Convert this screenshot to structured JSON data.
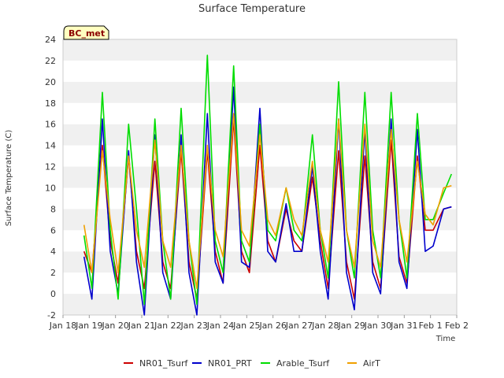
{
  "chart_data": {
    "type": "line",
    "title": "Surface Temperature",
    "xlabel": "Time",
    "ylabel": "Surface Temperature (C)",
    "badge": "BC_met",
    "ylim": [
      -2,
      24
    ],
    "yticks": [
      -2,
      0,
      2,
      4,
      6,
      8,
      10,
      12,
      14,
      16,
      18,
      20,
      22,
      24
    ],
    "xlim": [
      0,
      15
    ],
    "xticks": [
      0,
      1,
      2,
      3,
      4,
      5,
      6,
      7,
      8,
      9,
      10,
      11,
      12,
      13,
      14,
      15
    ],
    "xtick_labels": [
      "Jan 18",
      "Jan 19",
      "Jan 20",
      "Jan 21",
      "Jan 22",
      "Jan 23",
      "Jan 24",
      "Jan 25",
      "Jan 26",
      "Jan 27",
      "Jan 28",
      "Jan 29",
      "Jan 30",
      "Jan 31",
      "Feb 1",
      "Feb 2"
    ],
    "grid": "horizontal bands",
    "legend_position": "bottom",
    "series": [
      {
        "name": "NR01_Tsurf",
        "color": "#cc0000",
        "points": [
          [
            0.8,
            4.0
          ],
          [
            1.1,
            2.0
          ],
          [
            1.5,
            14.0
          ],
          [
            1.8,
            5.0
          ],
          [
            2.1,
            1.0
          ],
          [
            2.5,
            13.0
          ],
          [
            2.8,
            4.0
          ],
          [
            3.1,
            0.5
          ],
          [
            3.5,
            12.5
          ],
          [
            3.8,
            3.0
          ],
          [
            4.1,
            0.5
          ],
          [
            4.5,
            13.5
          ],
          [
            4.8,
            3.0
          ],
          [
            5.1,
            -0.5
          ],
          [
            5.5,
            13.5
          ],
          [
            5.8,
            4.0
          ],
          [
            6.1,
            1.0
          ],
          [
            6.5,
            16.5
          ],
          [
            6.8,
            4.0
          ],
          [
            7.1,
            2.0
          ],
          [
            7.5,
            14.0
          ],
          [
            7.8,
            5.0
          ],
          [
            8.1,
            3.0
          ],
          [
            8.5,
            8.0
          ],
          [
            8.8,
            5.0
          ],
          [
            9.1,
            4.0
          ],
          [
            9.5,
            11.0
          ],
          [
            9.8,
            5.0
          ],
          [
            10.1,
            0.5
          ],
          [
            10.5,
            13.5
          ],
          [
            10.8,
            3.0
          ],
          [
            11.1,
            -0.5
          ],
          [
            11.5,
            13.0
          ],
          [
            11.8,
            3.0
          ],
          [
            12.1,
            0.5
          ],
          [
            12.5,
            14.5
          ],
          [
            12.8,
            3.5
          ],
          [
            13.1,
            1.0
          ],
          [
            13.5,
            13.0
          ],
          [
            13.8,
            6.0
          ],
          [
            14.1,
            6.0
          ],
          [
            14.5,
            8.0
          ],
          [
            14.8,
            8.2
          ]
        ]
      },
      {
        "name": "NR01_PRT",
        "color": "#0000cc",
        "points": [
          [
            0.8,
            3.5
          ],
          [
            1.1,
            -0.5
          ],
          [
            1.5,
            16.5
          ],
          [
            1.8,
            4.0
          ],
          [
            2.1,
            0.0
          ],
          [
            2.5,
            13.5
          ],
          [
            2.8,
            3.0
          ],
          [
            3.1,
            -2.0
          ],
          [
            3.5,
            15.0
          ],
          [
            3.8,
            2.0
          ],
          [
            4.1,
            -0.5
          ],
          [
            4.5,
            15.0
          ],
          [
            4.8,
            2.0
          ],
          [
            5.1,
            -2.0
          ],
          [
            5.5,
            17.0
          ],
          [
            5.8,
            3.0
          ],
          [
            6.1,
            1.0
          ],
          [
            6.5,
            19.5
          ],
          [
            6.8,
            3.0
          ],
          [
            7.1,
            2.5
          ],
          [
            7.5,
            17.5
          ],
          [
            7.8,
            4.0
          ],
          [
            8.1,
            3.0
          ],
          [
            8.5,
            8.5
          ],
          [
            8.8,
            4.0
          ],
          [
            9.1,
            4.0
          ],
          [
            9.5,
            12.0
          ],
          [
            9.8,
            4.0
          ],
          [
            10.1,
            -0.5
          ],
          [
            10.5,
            16.5
          ],
          [
            10.8,
            2.0
          ],
          [
            11.1,
            -1.5
          ],
          [
            11.5,
            15.5
          ],
          [
            11.8,
            2.0
          ],
          [
            12.1,
            0.0
          ],
          [
            12.5,
            16.5
          ],
          [
            12.8,
            3.0
          ],
          [
            13.1,
            0.5
          ],
          [
            13.5,
            15.5
          ],
          [
            13.8,
            4.0
          ],
          [
            14.1,
            4.5
          ],
          [
            14.5,
            8.0
          ],
          [
            14.8,
            8.2
          ]
        ]
      },
      {
        "name": "Arable_Tsurf",
        "color": "#00dd00",
        "points": [
          [
            0.8,
            5.5
          ],
          [
            1.1,
            0.5
          ],
          [
            1.5,
            19.0
          ],
          [
            1.8,
            6.0
          ],
          [
            2.1,
            -0.5
          ],
          [
            2.5,
            16.0
          ],
          [
            2.8,
            8.0
          ],
          [
            3.1,
            -1.0
          ],
          [
            3.5,
            16.5
          ],
          [
            3.8,
            5.0
          ],
          [
            4.1,
            -0.5
          ],
          [
            4.5,
            17.5
          ],
          [
            4.8,
            5.0
          ],
          [
            5.1,
            -1.0
          ],
          [
            5.5,
            22.5
          ],
          [
            5.8,
            5.0
          ],
          [
            6.1,
            2.0
          ],
          [
            6.5,
            21.5
          ],
          [
            6.8,
            5.0
          ],
          [
            7.1,
            3.0
          ],
          [
            7.5,
            16.0
          ],
          [
            7.8,
            6.0
          ],
          [
            8.1,
            5.0
          ],
          [
            8.5,
            10.0
          ],
          [
            8.8,
            6.0
          ],
          [
            9.1,
            5.0
          ],
          [
            9.5,
            15.0
          ],
          [
            9.8,
            6.0
          ],
          [
            10.1,
            1.5
          ],
          [
            10.5,
            20.0
          ],
          [
            10.8,
            6.0
          ],
          [
            11.1,
            1.5
          ],
          [
            11.5,
            19.0
          ],
          [
            11.8,
            6.0
          ],
          [
            12.1,
            1.5
          ],
          [
            12.5,
            19.0
          ],
          [
            12.8,
            7.0
          ],
          [
            13.1,
            1.5
          ],
          [
            13.5,
            17.0
          ],
          [
            13.8,
            7.0
          ],
          [
            14.1,
            7.0
          ],
          [
            14.5,
            9.5
          ],
          [
            14.8,
            11.3
          ]
        ]
      },
      {
        "name": "AirT",
        "color": "#f0a000",
        "points": [
          [
            0.8,
            6.5
          ],
          [
            1.1,
            2.0
          ],
          [
            1.5,
            13.5
          ],
          [
            1.8,
            7.0
          ],
          [
            2.1,
            2.0
          ],
          [
            2.5,
            13.0
          ],
          [
            2.8,
            6.0
          ],
          [
            3.1,
            2.5
          ],
          [
            3.5,
            14.5
          ],
          [
            3.8,
            5.0
          ],
          [
            4.1,
            2.5
          ],
          [
            4.5,
            14.0
          ],
          [
            4.8,
            5.0
          ],
          [
            5.1,
            0.5
          ],
          [
            5.5,
            14.0
          ],
          [
            5.8,
            6.0
          ],
          [
            6.1,
            3.5
          ],
          [
            6.5,
            17.0
          ],
          [
            6.8,
            6.0
          ],
          [
            7.1,
            4.5
          ],
          [
            7.5,
            15.0
          ],
          [
            7.8,
            7.0
          ],
          [
            8.1,
            5.5
          ],
          [
            8.5,
            10.0
          ],
          [
            8.8,
            7.0
          ],
          [
            9.1,
            5.5
          ],
          [
            9.5,
            12.5
          ],
          [
            9.8,
            6.0
          ],
          [
            10.1,
            3.0
          ],
          [
            10.5,
            16.5
          ],
          [
            10.8,
            6.0
          ],
          [
            11.1,
            2.5
          ],
          [
            11.5,
            16.0
          ],
          [
            11.8,
            5.0
          ],
          [
            12.1,
            2.5
          ],
          [
            12.5,
            15.5
          ],
          [
            12.8,
            7.0
          ],
          [
            13.1,
            3.0
          ],
          [
            13.5,
            12.5
          ],
          [
            13.8,
            7.5
          ],
          [
            14.1,
            6.5
          ],
          [
            14.5,
            10.0
          ],
          [
            14.8,
            10.2
          ]
        ]
      }
    ]
  }
}
